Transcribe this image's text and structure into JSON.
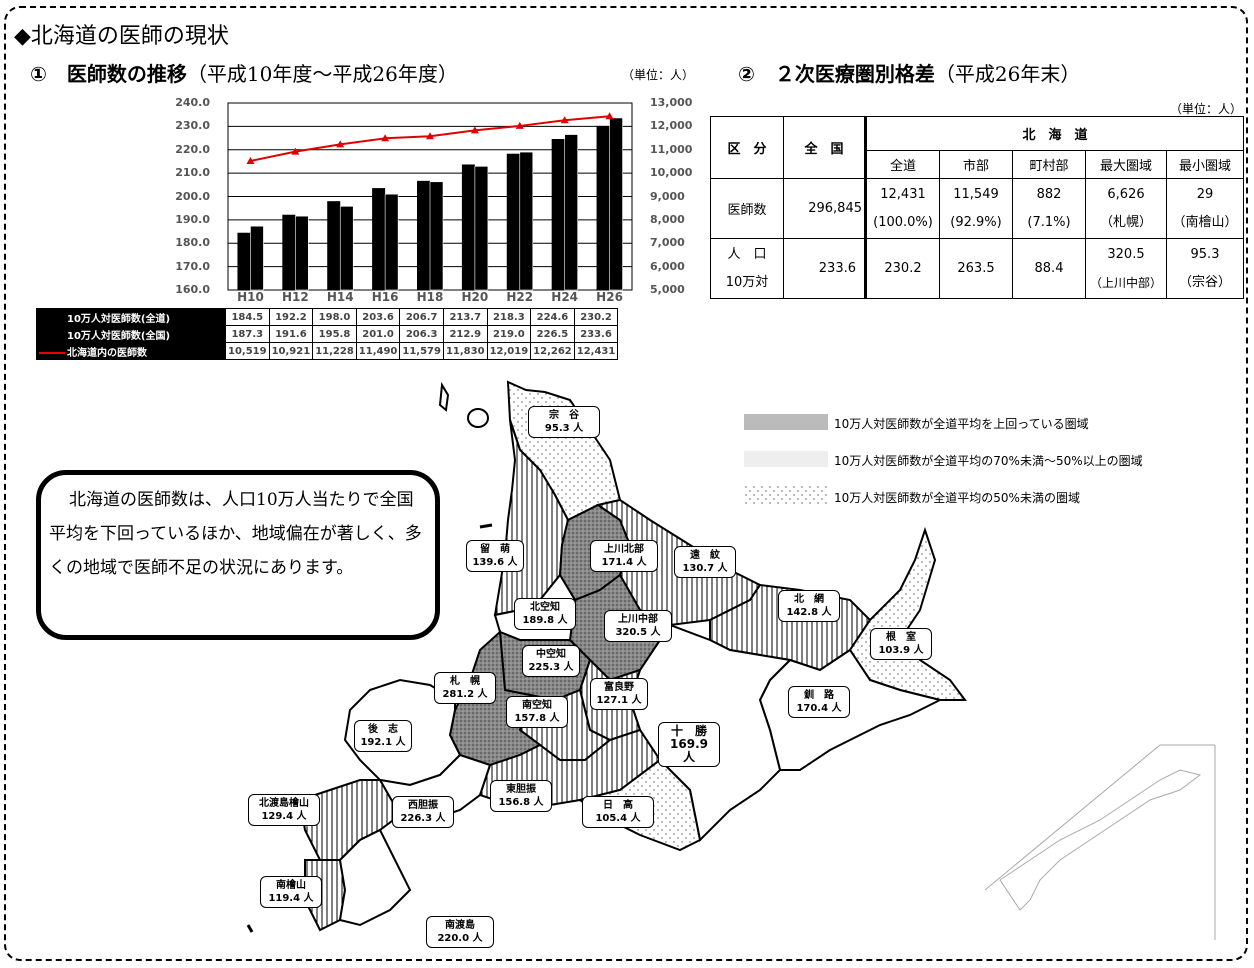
{
  "title": "◆北海道の医師の現状",
  "section1": {
    "heading": "①　医師数の推移",
    "sub": "（平成10年度～平成26年度）",
    "unit": "（単位：人）"
  },
  "section2": {
    "heading": "②　２次医療圏別格差",
    "sub": "（平成26年末）",
    "unit": "（単位：人）"
  },
  "chart_data": {
    "type": "bar",
    "categories": [
      "H10",
      "H12",
      "H14",
      "H16",
      "H18",
      "H20",
      "H22",
      "H24",
      "H26"
    ],
    "ylim_left": [
      160,
      240
    ],
    "ylim_right": [
      5000,
      13000
    ],
    "yticks_left": [
      "240.0",
      "230.0",
      "220.0",
      "210.0",
      "200.0",
      "190.0",
      "180.0",
      "170.0",
      "160.0"
    ],
    "yticks_right": [
      "13,000",
      "12,000",
      "11,000",
      "10,000",
      "9,000",
      "8,000",
      "7,000",
      "6,000",
      "5,000"
    ],
    "series": [
      {
        "name": "10万人対医師数(全道)",
        "axis": "left",
        "values": [
          184.5,
          192.2,
          198.0,
          203.6,
          206.7,
          213.7,
          218.3,
          224.6,
          230.2
        ],
        "labels": [
          "184.5",
          "192.2",
          "198.0",
          "203.6",
          "206.7",
          "213.7",
          "218.3",
          "224.6",
          "230.2"
        ]
      },
      {
        "name": "10万人対医師数(全国)",
        "axis": "left",
        "values": [
          187.3,
          191.6,
          195.8,
          201.0,
          206.3,
          212.9,
          219.0,
          226.5,
          233.6
        ],
        "labels": [
          "187.3",
          "191.6",
          "195.8",
          "201.0",
          "206.3",
          "212.9",
          "219.0",
          "226.5",
          "233.6"
        ]
      },
      {
        "name": "北海道内の医師数",
        "axis": "right",
        "type": "line",
        "values": [
          10519,
          10921,
          11228,
          11490,
          11579,
          11830,
          12019,
          12262,
          12431
        ],
        "labels": [
          "10,519",
          "10,921",
          "11,228",
          "11,490",
          "11,579",
          "11,830",
          "12,019",
          "12,262",
          "12,431"
        ]
      }
    ],
    "grid": true,
    "colors": {
      "bars": "#000000",
      "line": "#e00000"
    }
  },
  "table": {
    "h_kubun": "区　分",
    "h_zenkoku": "全　国",
    "h_hokkaido": "北　海　道",
    "cols": [
      "全道",
      "市部",
      "町村部",
      "最大圏域",
      "最小圏域"
    ],
    "row1_label": "医師数",
    "row1_zenkoku": "296,845",
    "row1_top": [
      "12,431",
      "11,549",
      "882",
      "6,626",
      "29"
    ],
    "row1_bot": [
      "(100.0%)",
      "(92.9%)",
      "(7.1%)",
      "（札幌）",
      "（南檜山）"
    ],
    "row2_label_top": "人　口",
    "row2_label_bot": "10万対",
    "row2_zenkoku": "233.6",
    "row2_vals": [
      "230.2",
      "263.5",
      "88.4"
    ],
    "row2_max_top": "320.5",
    "row2_max_bot": "（上川中部）",
    "row2_min_top": "95.3",
    "row2_min_bot": "（宗谷）"
  },
  "legend": [
    {
      "text": "10万人対医師数が全道平均を上回っている圏域",
      "pattern": "gray"
    },
    {
      "text": "10万人対医師数が全道平均の70%未満～50%以上の圏域",
      "pattern": "light"
    },
    {
      "text": "10万人対医師数が全道平均の50%未満の圏域",
      "pattern": "dots"
    }
  ],
  "callout": "北海道の医師数は、人口10万人当たりで全国平均を下回っているほか、地域偏在が著しく、多くの地域で医師不足の状況にあります。",
  "regions": [
    {
      "name": "宗　谷",
      "value": "95.3 人"
    },
    {
      "name": "留　萌",
      "value": "139.6 人"
    },
    {
      "name": "上川北部",
      "value": "171.4 人"
    },
    {
      "name": "遠　紋",
      "value": "130.7 人"
    },
    {
      "name": "北　網",
      "value": "142.8 人"
    },
    {
      "name": "根　室",
      "value": "103.9 人"
    },
    {
      "name": "北空知",
      "value": "189.8 人"
    },
    {
      "name": "上川中部",
      "value": "320.5 人"
    },
    {
      "name": "中空知",
      "value": "225.3 人"
    },
    {
      "name": "札　幌",
      "value": "281.2 人"
    },
    {
      "name": "富良野",
      "value": "127.1 人"
    },
    {
      "name": "南空知",
      "value": "157.8 人"
    },
    {
      "name": "釧　路",
      "value": "170.4 人"
    },
    {
      "name": "後　志",
      "value": "192.1 人"
    },
    {
      "name": "十　勝",
      "value": "169.9 人"
    },
    {
      "name": "東胆振",
      "value": "156.8 人"
    },
    {
      "name": "北渡島檜山",
      "value": "129.4 人"
    },
    {
      "name": "西胆振",
      "value": "226.3 人"
    },
    {
      "name": "日　高",
      "value": "105.4 人"
    },
    {
      "name": "南檜山",
      "value": "119.4 人"
    },
    {
      "name": "南渡島",
      "value": "220.0 人"
    }
  ]
}
